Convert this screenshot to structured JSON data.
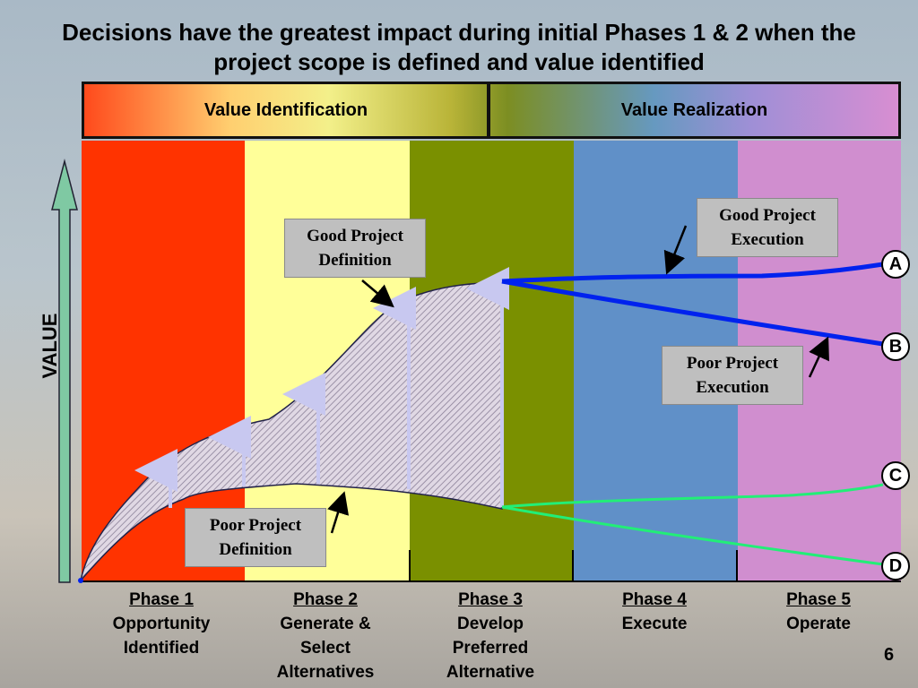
{
  "title": "Decisions have the greatest impact during initial Phases 1 & 2 when the project scope is defined and value identified",
  "header": {
    "left_label": "Value Identification",
    "right_label": "Value Realization"
  },
  "axis_label": "VALUE",
  "colors": {
    "phase1": "#ff3300",
    "phase2": "#ffff99",
    "phase3": "#7a9000",
    "phase4": "#6090c8",
    "phase5": "#d08ecf",
    "good_line": "#0022ee",
    "poor_line": "#22ee77",
    "axis_arrow": "#7fc9a3"
  },
  "phases": [
    {
      "number": "Phase 1",
      "line1": "Opportunity",
      "line2": "Identified",
      "line3": ""
    },
    {
      "number": "Phase 2",
      "line1": "Generate &",
      "line2": "Select",
      "line3": "Alternatives"
    },
    {
      "number": "Phase 3",
      "line1": "Develop",
      "line2": "Preferred",
      "line3": "Alternative"
    },
    {
      "number": "Phase 4",
      "line1": "Execute",
      "line2": "",
      "line3": ""
    },
    {
      "number": "Phase 5",
      "line1": "Operate",
      "line2": "",
      "line3": ""
    }
  ],
  "callouts": {
    "good_definition": {
      "line1": "Good Project",
      "line2": "Definition"
    },
    "poor_definition": {
      "line1": "Poor Project",
      "line2": "Definition"
    },
    "good_execution": {
      "line1": "Good Project",
      "line2": "Execution"
    },
    "poor_execution": {
      "line1": "Poor Project",
      "line2": "Execution"
    }
  },
  "outcomes": [
    "A",
    "B",
    "C",
    "D"
  ],
  "page_number": "6"
}
